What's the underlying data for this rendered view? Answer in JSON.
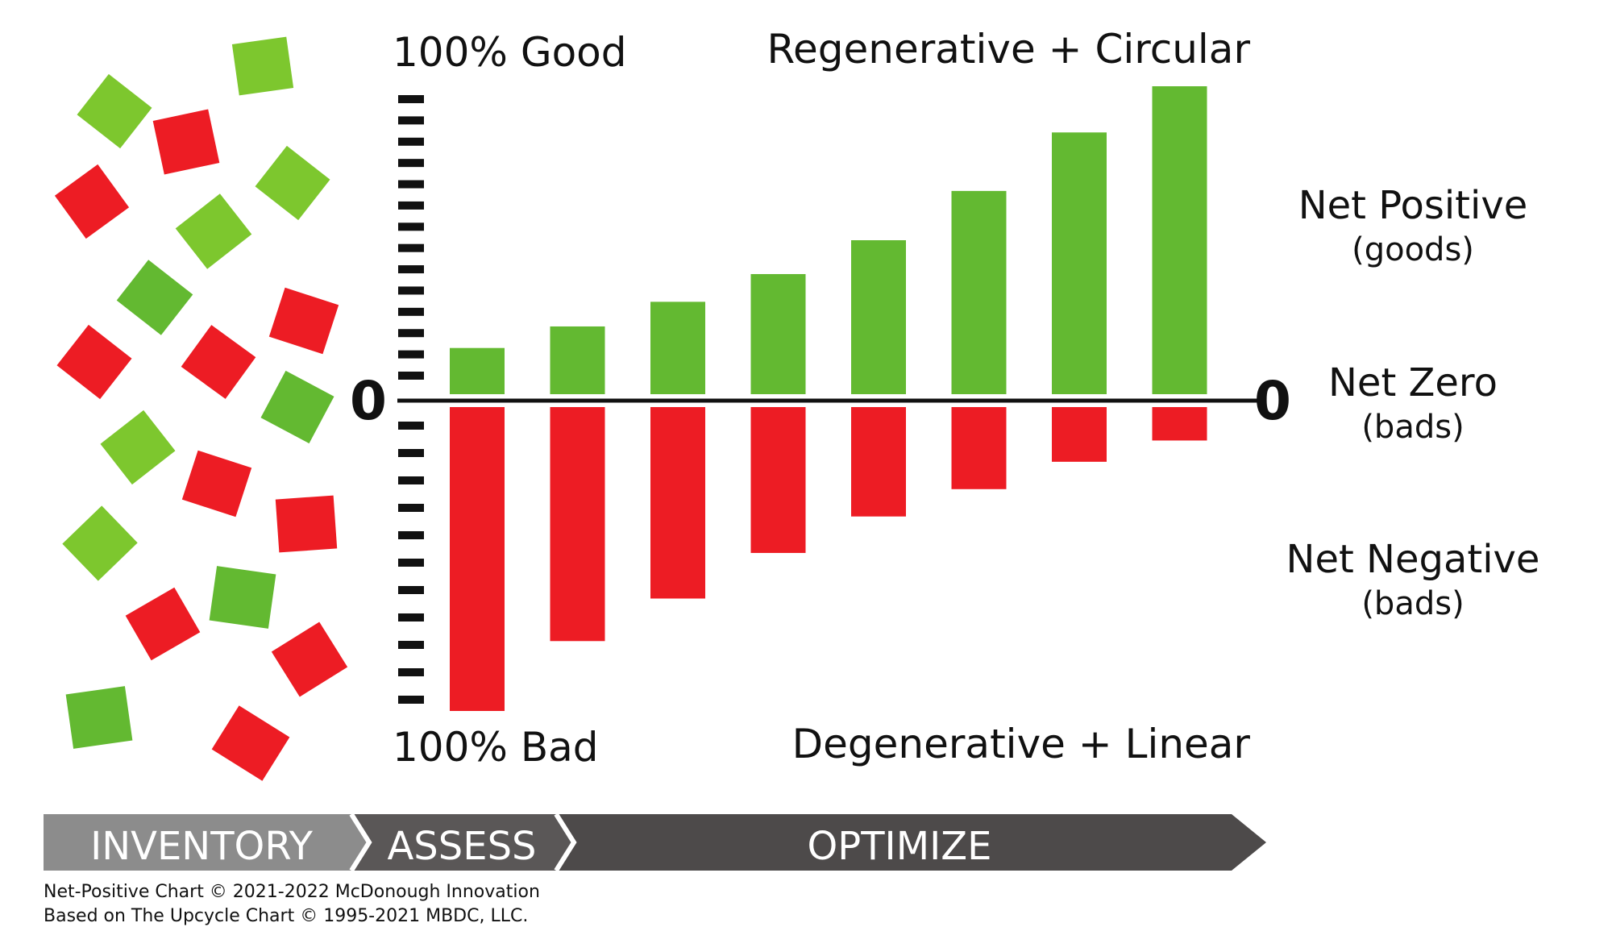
{
  "chart_data": {
    "type": "bar",
    "categories": [
      "",
      "",
      "",
      "",
      "",
      "",
      "",
      ""
    ],
    "series": [
      {
        "values": [
          15,
          22,
          30,
          39,
          50,
          66,
          85,
          100
        ]
      },
      {
        "values": [
          -100,
          -77,
          -63,
          -48,
          -36,
          -27,
          -18,
          -11
        ]
      }
    ],
    "ylim": [
      -100,
      100
    ],
    "grid": false,
    "top_label": "100% Good",
    "bottom_label": "100% Bad",
    "top_right_label": "Regenerative + Circular",
    "bottom_right_label": "Degenerative + Linear",
    "zero_left": "0",
    "zero_right": "0",
    "legend": [
      {
        "title": "Net Positive",
        "subtitle": "(goods)"
      },
      {
        "title": "Net Zero",
        "subtitle": "(bads)"
      },
      {
        "title": "Net Negative",
        "subtitle": "(bads)"
      }
    ],
    "colors": {
      "positive": "#63b931",
      "negative": "#ed1c24",
      "light_green": "#7dc72e",
      "axis": "#111111"
    }
  },
  "process": {
    "steps": [
      "INVENTORY",
      "ASSESS",
      "OPTIMIZE"
    ],
    "colors": [
      "#8c8c8c",
      "#5a5757",
      "#4d4a4a"
    ]
  },
  "credits": [
    "Net-Positive Chart © 2021-2022 McDonough Innovation",
    "Based on The Upcycle Chart © 1995-2021 MBDC, LLC."
  ]
}
